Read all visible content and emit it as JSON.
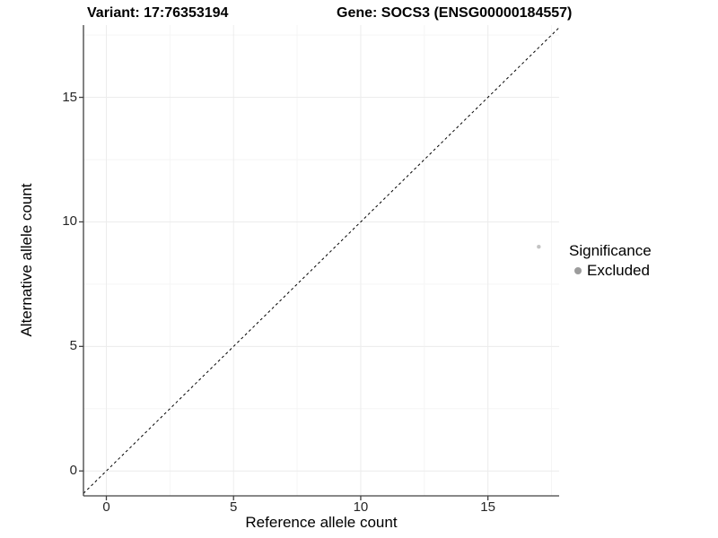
{
  "titles": {
    "variant": "Variant: 17:76353194",
    "gene": "Gene: SOCS3 (ENSG00000184557)"
  },
  "chart_data": {
    "type": "scatter",
    "title_left": "Variant: 17:76353194",
    "title_right": "Gene: SOCS3 (ENSG00000184557)",
    "xlabel": "Reference allele count",
    "ylabel": "Alternative allele count",
    "xlim": [
      -0.9,
      17.8
    ],
    "ylim": [
      -1.0,
      17.9
    ],
    "x_ticks": [
      0,
      5,
      10,
      15
    ],
    "y_ticks": [
      0,
      5,
      10,
      15
    ],
    "x_minor_ticks": [
      2.5,
      7.5,
      12.5,
      17.5
    ],
    "y_minor_ticks": [
      2.5,
      7.5,
      12.5,
      17.5
    ],
    "grid": true,
    "series": [
      {
        "name": "Excluded",
        "points": [
          {
            "x": 17,
            "y": 9
          }
        ],
        "color": "#c3c3c3",
        "point_radius": 2.2
      }
    ],
    "annotations": [
      {
        "type": "identity-line",
        "equation": "y = x",
        "style": "dashed",
        "color": "#000000"
      }
    ],
    "legend": {
      "title": "Significance",
      "position": "right",
      "items": [
        {
          "label": "Excluded",
          "color": "#9c9c9c"
        }
      ]
    }
  },
  "colors": {
    "background": "#ffffff",
    "axis_line": "#404040",
    "tick_text": "#262626",
    "grid_major": "#ececec",
    "grid_minor": "#f5f5f5",
    "dashed_line": "#000000",
    "point": "#c3c3c3",
    "legend_key": "#9c9c9c"
  }
}
